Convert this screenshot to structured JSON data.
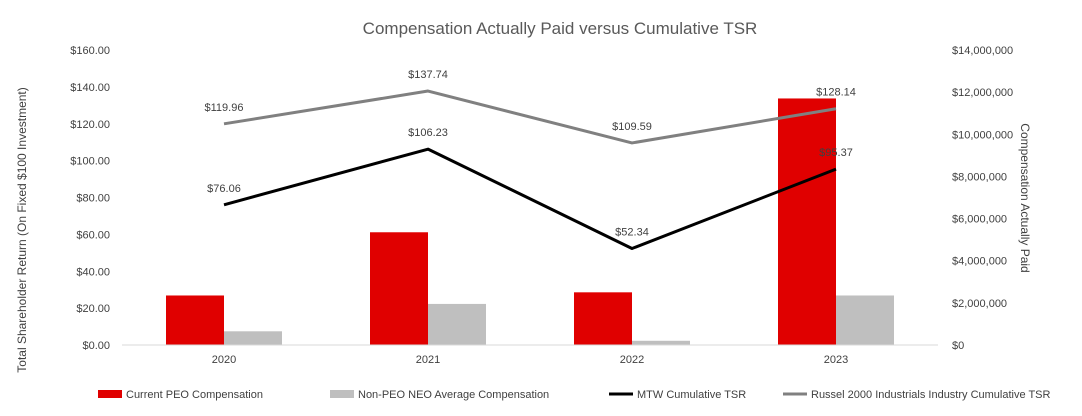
{
  "chart_data": {
    "type": "bar",
    "title": "Compensation Actually Paid versus Cumulative TSR",
    "categories": [
      "2020",
      "2021",
      "2022",
      "2023"
    ],
    "ylabel_left": "Total Shareholder Return  (On Fixed $100 Investment)",
    "ylabel_right": "Compensation Actually Paid",
    "y_left_ticks": [
      "$0.00",
      "$20.00",
      "$40.00",
      "$60.00",
      "$80.00",
      "$100.00",
      "$120.00",
      "$140.00",
      "$160.00"
    ],
    "y_right_ticks": [
      "$0",
      "$2,000,000",
      "$4,000,000",
      "$6,000,000",
      "$8,000,000",
      "$10,000,000",
      "$12,000,000",
      "$14,000,000"
    ],
    "ylim_left": [
      0,
      160
    ],
    "ylim_right": [
      0,
      14000000
    ],
    "grid": false,
    "legend_position": "bottom",
    "bar_series": [
      {
        "name": "Current PEO Compensation",
        "color": "#e00000",
        "axis": "right",
        "values": [
          2350000,
          5350000,
          2500000,
          11700000
        ]
      },
      {
        "name": "Non-PEO NEO Average Compensation",
        "color": "#bfbfbf",
        "axis": "right",
        "values": [
          650000,
          1950000,
          200000,
          2350000
        ]
      }
    ],
    "line_series": [
      {
        "name": "MTW Cumulative TSR",
        "color": "#000000",
        "axis": "left",
        "values": [
          76.06,
          106.23,
          52.34,
          95.37
        ],
        "labels": [
          "$76.06",
          "$106.23",
          "$52.34",
          "$95.37"
        ]
      },
      {
        "name": "Russel 2000 Industrials Industry Cumulative TSR",
        "color": "#808080",
        "axis": "left",
        "values": [
          119.96,
          137.74,
          109.59,
          128.14
        ],
        "labels": [
          "$119.96",
          "$137.74",
          "$109.59",
          "$128.14"
        ]
      }
    ]
  }
}
